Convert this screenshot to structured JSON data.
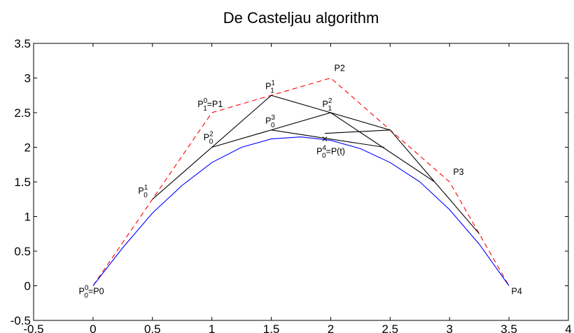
{
  "chart_data": {
    "type": "line",
    "title": "De Casteljau algorithm",
    "xlabel": "",
    "ylabel": "",
    "xlim": [
      -0.5,
      4
    ],
    "ylim": [
      -0.5,
      3.5
    ],
    "xticks": [
      "-0.5",
      "0",
      "0.5",
      "1",
      "1.5",
      "2",
      "2.5",
      "3",
      "3.5",
      "4"
    ],
    "yticks": [
      "-0.5",
      "0",
      "0.5",
      "1",
      "1.5",
      "2",
      "2.5",
      "3",
      "3.5"
    ],
    "grid": false,
    "legend": "none",
    "colors": {
      "control_polygon": "#ff0000",
      "curve": "#0000ff",
      "construction": "#000000"
    },
    "series": [
      {
        "style": "dashed",
        "color": "#ff0000",
        "x": [
          0,
          1,
          2,
          3,
          3.5
        ],
        "y": [
          0,
          2.5,
          3,
          1.5,
          0
        ]
      },
      {
        "style": "solid",
        "color": "#0000ff",
        "x": [
          0,
          0.25,
          0.5,
          0.75,
          1,
          1.25,
          1.5,
          1.75,
          2,
          2.25,
          2.5,
          2.75,
          3,
          3.25,
          3.5
        ],
        "y": [
          0,
          0.55,
          1.05,
          1.45,
          1.78,
          2.0,
          2.12,
          2.15,
          2.1,
          1.98,
          1.78,
          1.5,
          1.1,
          0.6,
          0
        ]
      },
      {
        "style": "solid",
        "color": "#000000",
        "x": [
          0.5,
          1.5,
          2.5,
          3.25
        ],
        "y": [
          1.25,
          2.75,
          2.25,
          0.75
        ]
      },
      {
        "style": "solid",
        "color": "#000000",
        "x": [
          1,
          2,
          2.875
        ],
        "y": [
          2,
          2.5,
          1.5
        ]
      },
      {
        "style": "solid",
        "color": "#000000",
        "x": [
          1.5,
          2.45
        ],
        "y": [
          2.25,
          2
        ]
      },
      {
        "style": "solid",
        "color": "#000000",
        "x": [
          1.95,
          2.5
        ],
        "y": [
          2.2,
          2.25
        ]
      }
    ],
    "marker": {
      "symbol": "x",
      "x": 1.95,
      "y": 2.12
    },
    "annotations": [
      {
        "base": "P",
        "sub": "0",
        "sup": "0",
        "suffix": "=P0",
        "x": -0.12,
        "y": -0.12
      },
      {
        "base": "P",
        "sub": "1",
        "sup": "0",
        "suffix": "=P1",
        "x": 0.88,
        "y": 2.58
      },
      {
        "base": "P2",
        "sub": "",
        "sup": "",
        "suffix": "",
        "x": 2.03,
        "y": 3.1
      },
      {
        "base": "P3",
        "sub": "",
        "sup": "",
        "suffix": "",
        "x": 3.03,
        "y": 1.6
      },
      {
        "base": "P4",
        "sub": "",
        "sup": "",
        "suffix": "",
        "x": 3.52,
        "y": -0.12
      },
      {
        "base": "P",
        "sub": "0",
        "sup": "1",
        "suffix": "",
        "x": 0.38,
        "y": 1.33
      },
      {
        "base": "P",
        "sub": "1",
        "sup": "1",
        "suffix": "",
        "x": 1.45,
        "y": 2.84
      },
      {
        "base": "P",
        "sub": "0",
        "sup": "2",
        "suffix": "",
        "x": 0.93,
        "y": 2.1
      },
      {
        "base": "P",
        "sub": "1",
        "sup": "2",
        "suffix": "",
        "x": 1.93,
        "y": 2.58
      },
      {
        "base": "P",
        "sub": "0",
        "sup": "3",
        "suffix": "",
        "x": 1.45,
        "y": 2.34
      },
      {
        "base": "P",
        "sub": "0",
        "sup": "4",
        "suffix": "=P(t)",
        "x": 1.88,
        "y": 1.9
      }
    ]
  }
}
